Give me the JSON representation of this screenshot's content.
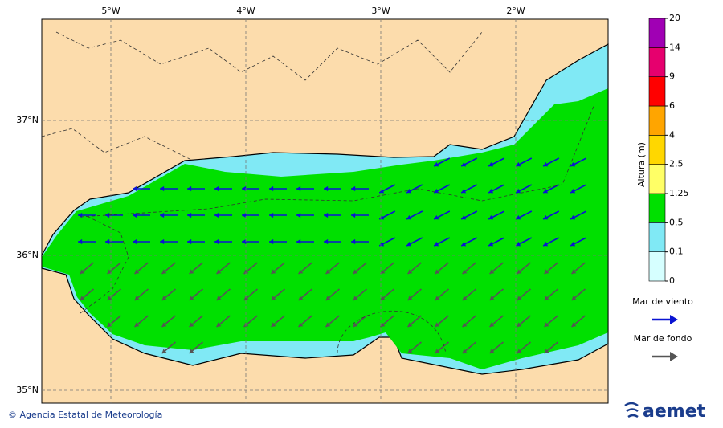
{
  "map": {
    "lon_ticks": [
      {
        "value": -5,
        "label": "5°W"
      },
      {
        "value": -4,
        "label": "4°W"
      },
      {
        "value": -3,
        "label": "3°W"
      },
      {
        "value": -2,
        "label": "2°W"
      }
    ],
    "lat_ticks": [
      {
        "value": 37,
        "label": "37°N"
      },
      {
        "value": 36,
        "label": "36°N"
      },
      {
        "value": 35,
        "label": "35°N"
      }
    ],
    "colorbar": {
      "title": "Altura (m)",
      "levels": [
        0,
        0.1,
        0.5,
        1.25,
        2.5,
        4,
        6,
        9,
        14,
        20
      ],
      "colors": [
        "#d6ffff",
        "#80e9f5",
        "#00e000",
        "#ffff66",
        "#ffd700",
        "#ffa500",
        "#ff0000",
        "#e6006e",
        "#a000b4"
      ]
    },
    "legend": [
      {
        "name": "Mar de viento",
        "color": "#0a14d2"
      },
      {
        "name": "Mar de fondo",
        "color": "#555555"
      }
    ],
    "footer": "© Agencia Estatal de Meteorología",
    "logo": "aemet"
  }
}
